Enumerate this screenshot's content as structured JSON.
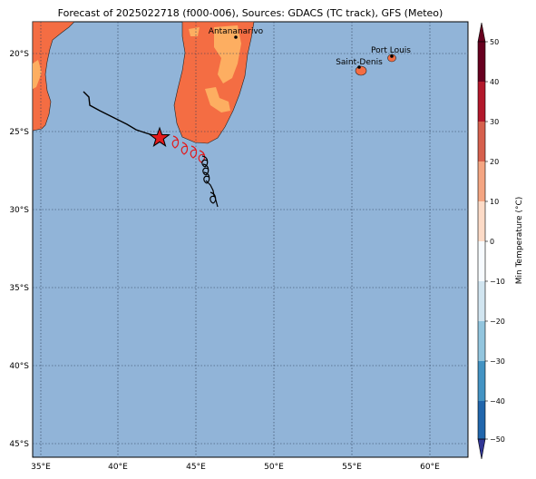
{
  "title": "Forecast of 2025022718 (f000-006), Sources: GDACS (TC track), GFS (Meteo)",
  "map": {
    "lon_ticks": [
      "35°E",
      "40°E",
      "45°E",
      "50°E",
      "55°E",
      "60°E"
    ],
    "lat_ticks": [
      "20°S",
      "25°S",
      "30°S",
      "35°S",
      "40°S",
      "45°S"
    ],
    "cities": [
      {
        "name": "Antananarivo"
      },
      {
        "name": "Port Louis"
      },
      {
        "name": "Saint-Denis"
      }
    ],
    "colors": {
      "ocean": "#91b4d8",
      "land_warm": "#f46d43",
      "land_hot": "#fdae61",
      "track_past": "#000000",
      "track_forecast": "#e31a1c"
    }
  },
  "colorbar": {
    "label": "Min Temperature (°C)",
    "ticks": [
      "50",
      "40",
      "30",
      "20",
      "10",
      "0",
      "−10",
      "−20",
      "−30",
      "−40",
      "−50"
    ],
    "colors": [
      "#67001f",
      "#b2182b",
      "#d6604d",
      "#f4a582",
      "#fddbc7",
      "#ffffff",
      "#e0f3f8",
      "#abd9e9",
      "#74add1",
      "#4575b4",
      "#313695"
    ]
  }
}
